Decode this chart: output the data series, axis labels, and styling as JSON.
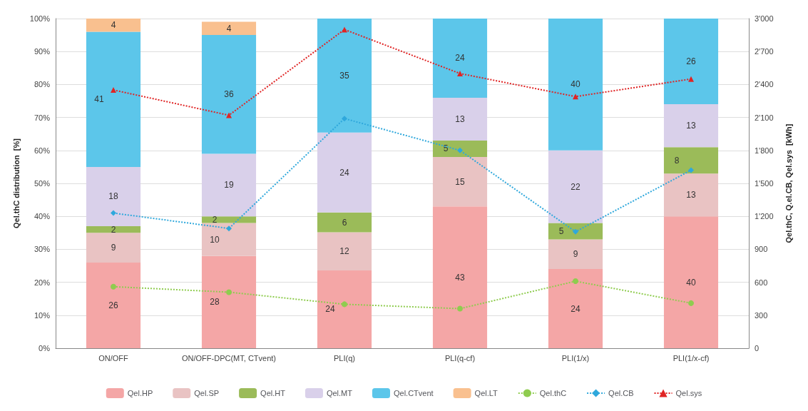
{
  "chart_data": {
    "type": "bar",
    "stacked": true,
    "ylabel": "Qel.thC distribution  [%]",
    "y2label": "Qel.thC, Q.el.CB, Qel.sys  [kWh]",
    "categories": [
      "ON/OFF",
      "ON/OFF-DPC(MT, CTvent)",
      "PLI(q)",
      "PLI(q-cf)",
      "PLI(1/x)",
      "PLI(1/x-cf)"
    ],
    "ylim": [
      0,
      100
    ],
    "yticks": [
      {
        "value": 0,
        "label": "0%"
      },
      {
        "value": 10,
        "label": "10%"
      },
      {
        "value": 20,
        "label": "20%"
      },
      {
        "value": 30,
        "label": "30%"
      },
      {
        "value": 40,
        "label": "40%"
      },
      {
        "value": 50,
        "label": "50%"
      },
      {
        "value": 60,
        "label": "60%"
      },
      {
        "value": 70,
        "label": "70%"
      },
      {
        "value": 80,
        "label": "80%"
      },
      {
        "value": 90,
        "label": "90%"
      },
      {
        "value": 100,
        "label": "100%"
      }
    ],
    "y2lim": [
      0,
      3000
    ],
    "y2ticks": [
      0,
      {
        "value": 300,
        "label": "300"
      },
      {
        "value": 600,
        "label": "600"
      },
      {
        "value": 900,
        "label": "900"
      },
      {
        "value": 1200,
        "label": "1'200"
      },
      {
        "value": 1500,
        "label": "1'500"
      },
      {
        "value": 1800,
        "label": "1'800"
      },
      {
        "value": 2100,
        "label": "2'100"
      },
      {
        "value": 2400,
        "label": "2'400"
      },
      {
        "value": 2700,
        "label": "2'700"
      },
      {
        "value": 3000,
        "label": "3'000"
      }
    ],
    "grid": "y",
    "legend": "bottom",
    "line_style": "dotted",
    "series": [
      {
        "name": "Qel.HP",
        "color": "#f4a6a6",
        "values": [
          26,
          28,
          23.6,
          43,
          24,
          40
        ],
        "value_labels": [
          "26",
          "28",
          "24",
          "43",
          "24",
          "40"
        ]
      },
      {
        "name": "Qel.SP",
        "color": "#e9c3c3",
        "values": [
          9,
          10,
          11.6,
          15,
          9,
          13
        ],
        "value_labels": [
          "9",
          "10",
          "12",
          "15",
          "9",
          "13"
        ]
      },
      {
        "name": "Qel.HT",
        "color": "#9bbb59",
        "values": [
          2,
          2,
          6,
          5,
          5,
          8
        ],
        "value_labels": [
          "2",
          "2",
          "6",
          "5",
          "5",
          "8"
        ]
      },
      {
        "name": "Qel.MT",
        "color": "#d9d0ea",
        "values": [
          18,
          19,
          24.2,
          13,
          22,
          13
        ],
        "value_labels": [
          "18",
          "19",
          "24",
          "13",
          "22",
          "13"
        ]
      },
      {
        "name": "Qel.CTvent",
        "color": "#5cc6ea",
        "values": [
          41,
          36,
          34.6,
          24,
          40,
          26
        ],
        "value_labels": [
          "41",
          "36",
          "35",
          "24",
          "40",
          "26"
        ]
      },
      {
        "name": "Qel.LT",
        "color": "#f9c08f",
        "values": [
          4,
          4,
          null,
          null,
          null,
          null
        ],
        "value_labels": [
          "4",
          "4",
          null,
          null,
          null,
          null
        ]
      },
      {
        "name": "Qel.thC",
        "type": "line",
        "axis": "y2",
        "marker": "circle",
        "color": "#8fcc4f",
        "values": [
          560,
          510,
          400,
          360,
          610,
          410
        ]
      },
      {
        "name": "Qel.CB",
        "type": "line",
        "axis": "y2",
        "marker": "diamond",
        "color": "#2fa8dc",
        "values": [
          1230,
          1090,
          2090,
          1800,
          1060,
          1620
        ]
      },
      {
        "name": "Qel.sys",
        "type": "line",
        "axis": "y2",
        "marker": "triangle",
        "color": "#e02424",
        "values": [
          2350,
          2120,
          2900,
          2500,
          2290,
          2450
        ]
      }
    ]
  }
}
